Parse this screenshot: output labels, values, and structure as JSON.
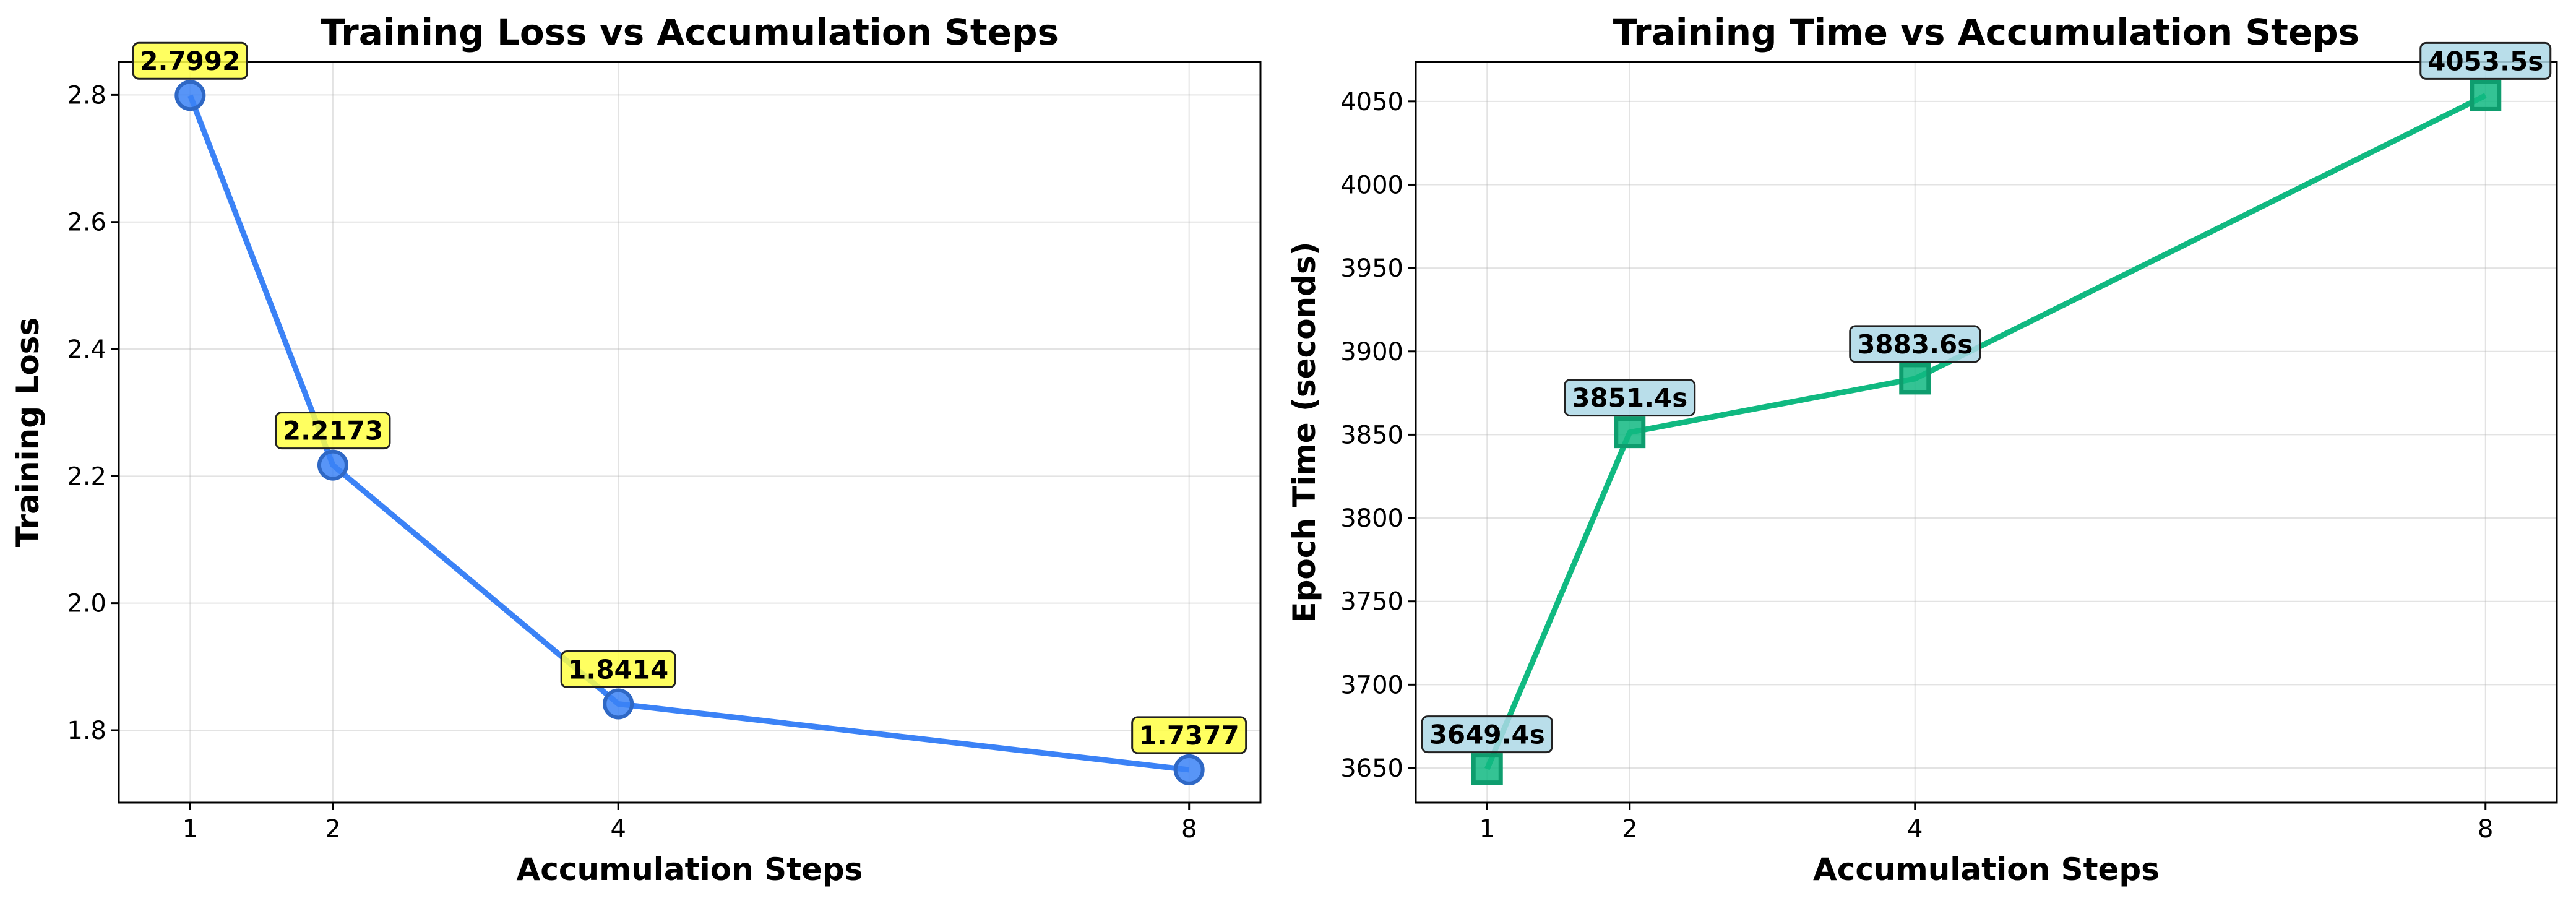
{
  "chart_data": [
    {
      "type": "line",
      "title": "Training Loss vs Accumulation Steps",
      "xlabel": "Accumulation Steps",
      "ylabel": "Training Loss",
      "x": [
        1,
        2,
        4,
        8
      ],
      "xticks": [
        "1",
        "2",
        "4",
        "8"
      ],
      "xlim": [
        0.5,
        8.5
      ],
      "ylim": [
        1.686,
        2.852
      ],
      "yticks": [
        "1.8",
        "2.0",
        "2.2",
        "2.4",
        "2.6",
        "2.8"
      ],
      "series": [
        {
          "values": [
            2.7992,
            2.2173,
            1.8414,
            1.7377
          ],
          "color": "#3b82f6",
          "marker": "circle"
        }
      ],
      "data_labels": [
        "2.7992",
        "2.2173",
        "1.8414",
        "1.7377"
      ],
      "label_box_color": "#ffff44",
      "grid": true
    },
    {
      "type": "line",
      "title": "Training Time vs Accumulation Steps",
      "xlabel": "Accumulation Steps",
      "ylabel": "Epoch Time (seconds)",
      "x": [
        1,
        2,
        4,
        8
      ],
      "xticks": [
        "1",
        "2",
        "4",
        "8"
      ],
      "xlim": [
        0.5,
        8.5
      ],
      "ylim": [
        3629.2,
        4073.7
      ],
      "yticks": [
        "3650",
        "3700",
        "3750",
        "3800",
        "3850",
        "3900",
        "3950",
        "4000",
        "4050"
      ],
      "series": [
        {
          "values": [
            3649.4,
            3851.4,
            3883.6,
            4053.5
          ],
          "color": "#10b981",
          "marker": "square"
        }
      ],
      "data_labels": [
        "3649.4s",
        "3851.4s",
        "3883.6s",
        "4053.5s"
      ],
      "label_box_color": "#add8e6",
      "grid": true
    }
  ]
}
